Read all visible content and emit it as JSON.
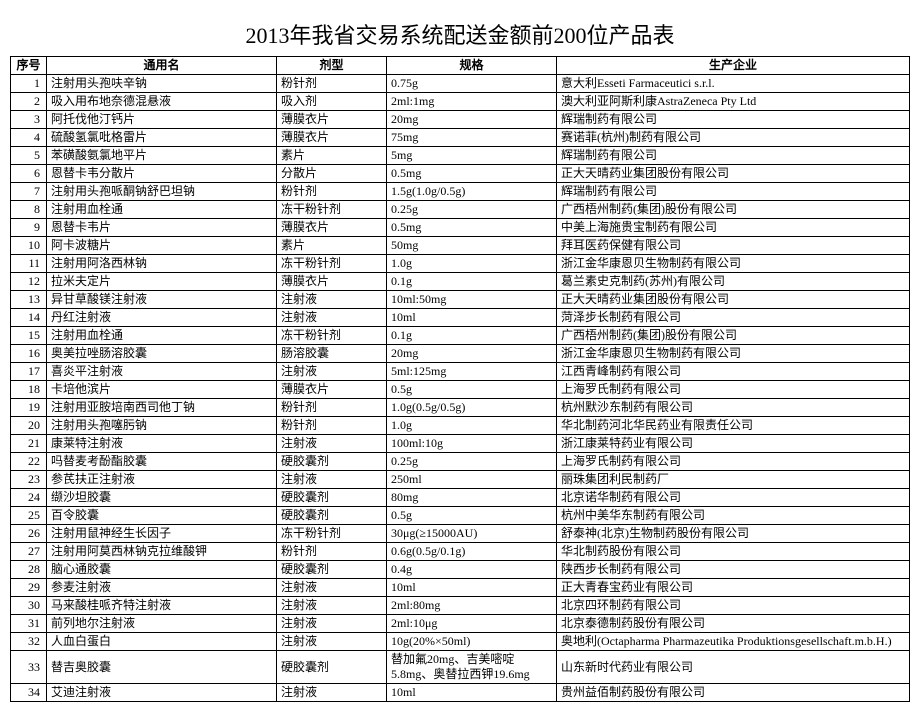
{
  "title": "2013年我省交易系统配送金额前200位产品表",
  "columns": [
    "序号",
    "通用名",
    "剂型",
    "规格",
    "生产企业"
  ],
  "rows": [
    [
      "1",
      "注射用头孢呋辛钠",
      "粉针剂",
      "0.75g",
      "意大利Esseti Farmaceutici s.r.l."
    ],
    [
      "2",
      "吸入用布地奈德混悬液",
      "吸入剂",
      "2ml:1mg",
      "澳大利亚阿斯利康AstraZeneca Pty Ltd"
    ],
    [
      "3",
      "阿托伐他汀钙片",
      "薄膜衣片",
      "20mg",
      "辉瑞制药有限公司"
    ],
    [
      "4",
      "硫酸氢氯吡格雷片",
      "薄膜衣片",
      "75mg",
      "赛诺菲(杭州)制药有限公司"
    ],
    [
      "5",
      "苯磺酸氨氯地平片",
      "素片",
      "5mg",
      "辉瑞制药有限公司"
    ],
    [
      "6",
      "恩替卡韦分散片",
      "分散片",
      "0.5mg",
      "正大天晴药业集团股份有限公司"
    ],
    [
      "7",
      "注射用头孢哌酮钠舒巴坦钠",
      "粉针剂",
      "1.5g(1.0g/0.5g)",
      "辉瑞制药有限公司"
    ],
    [
      "8",
      "注射用血栓通",
      "冻干粉针剂",
      "0.25g",
      "广西梧州制药(集团)股份有限公司"
    ],
    [
      "9",
      "恩替卡韦片",
      "薄膜衣片",
      "0.5mg",
      "中美上海施贵宝制药有限公司"
    ],
    [
      "10",
      "阿卡波糖片",
      "素片",
      "50mg",
      "拜耳医药保健有限公司"
    ],
    [
      "11",
      "注射用阿洛西林钠",
      "冻干粉针剂",
      "1.0g",
      "浙江金华康恩贝生物制药有限公司"
    ],
    [
      "12",
      "拉米夫定片",
      "薄膜衣片",
      "0.1g",
      "葛兰素史克制药(苏州)有限公司"
    ],
    [
      "13",
      "异甘草酸镁注射液",
      "注射液",
      "10ml:50mg",
      "正大天晴药业集团股份有限公司"
    ],
    [
      "14",
      "丹红注射液",
      "注射液",
      "10ml",
      "菏泽步长制药有限公司"
    ],
    [
      "15",
      "注射用血栓通",
      "冻干粉针剂",
      "0.1g",
      "广西梧州制药(集团)股份有限公司"
    ],
    [
      "16",
      "奥美拉唑肠溶胶囊",
      "肠溶胶囊",
      "20mg",
      "浙江金华康恩贝生物制药有限公司"
    ],
    [
      "17",
      "喜炎平注射液",
      "注射液",
      "5ml:125mg",
      "江西青峰制药有限公司"
    ],
    [
      "18",
      "卡培他滨片",
      "薄膜衣片",
      "0.5g",
      "上海罗氏制药有限公司"
    ],
    [
      "19",
      "注射用亚胺培南西司他丁钠",
      "粉针剂",
      "1.0g(0.5g/0.5g)",
      "杭州默沙东制药有限公司"
    ],
    [
      "20",
      "注射用头孢噻肟钠",
      "粉针剂",
      "1.0g",
      "华北制药河北华民药业有限责任公司"
    ],
    [
      "21",
      "康莱特注射液",
      "注射液",
      "100ml:10g",
      "浙江康莱特药业有限公司"
    ],
    [
      "22",
      "吗替麦考酚酯胶囊",
      "硬胶囊剂",
      "0.25g",
      "上海罗氏制药有限公司"
    ],
    [
      "23",
      "参芪扶正注射液",
      "注射液",
      "250ml",
      "丽珠集团利民制药厂"
    ],
    [
      "24",
      "缬沙坦胶囊",
      "硬胶囊剂",
      "80mg",
      "北京诺华制药有限公司"
    ],
    [
      "25",
      "百令胶囊",
      "硬胶囊剂",
      "0.5g",
      "杭州中美华东制药有限公司"
    ],
    [
      "26",
      "注射用鼠神经生长因子",
      "冻干粉针剂",
      "30μg(≥15000AU)",
      "舒泰神(北京)生物制药股份有限公司"
    ],
    [
      "27",
      "注射用阿莫西林钠克拉维酸钾",
      "粉针剂",
      "0.6g(0.5g/0.1g)",
      "华北制药股份有限公司"
    ],
    [
      "28",
      "脑心通胶囊",
      "硬胶囊剂",
      "0.4g",
      "陕西步长制药有限公司"
    ],
    [
      "29",
      "参麦注射液",
      "注射液",
      "10ml",
      "正大青春宝药业有限公司"
    ],
    [
      "30",
      "马来酸桂哌齐特注射液",
      "注射液",
      "2ml:80mg",
      "北京四环制药有限公司"
    ],
    [
      "31",
      "前列地尔注射液",
      "注射液",
      "2ml:10μg",
      "北京泰德制药股份有限公司"
    ],
    [
      "32",
      "人血白蛋白",
      "注射液",
      "10g(20%×50ml)",
      "奥地利(Octapharma Pharmazeutika Produktionsgesellschaft.m.b.H.)"
    ],
    [
      "33",
      "替吉奥胶囊",
      "硬胶囊剂",
      "替加氟20mg、吉美嘧啶5.8mg、奥替拉西钾19.6mg",
      "山东新时代药业有限公司"
    ],
    [
      "34",
      "艾迪注射液",
      "注射液",
      "10ml",
      "贵州益佰制药股份有限公司"
    ]
  ]
}
